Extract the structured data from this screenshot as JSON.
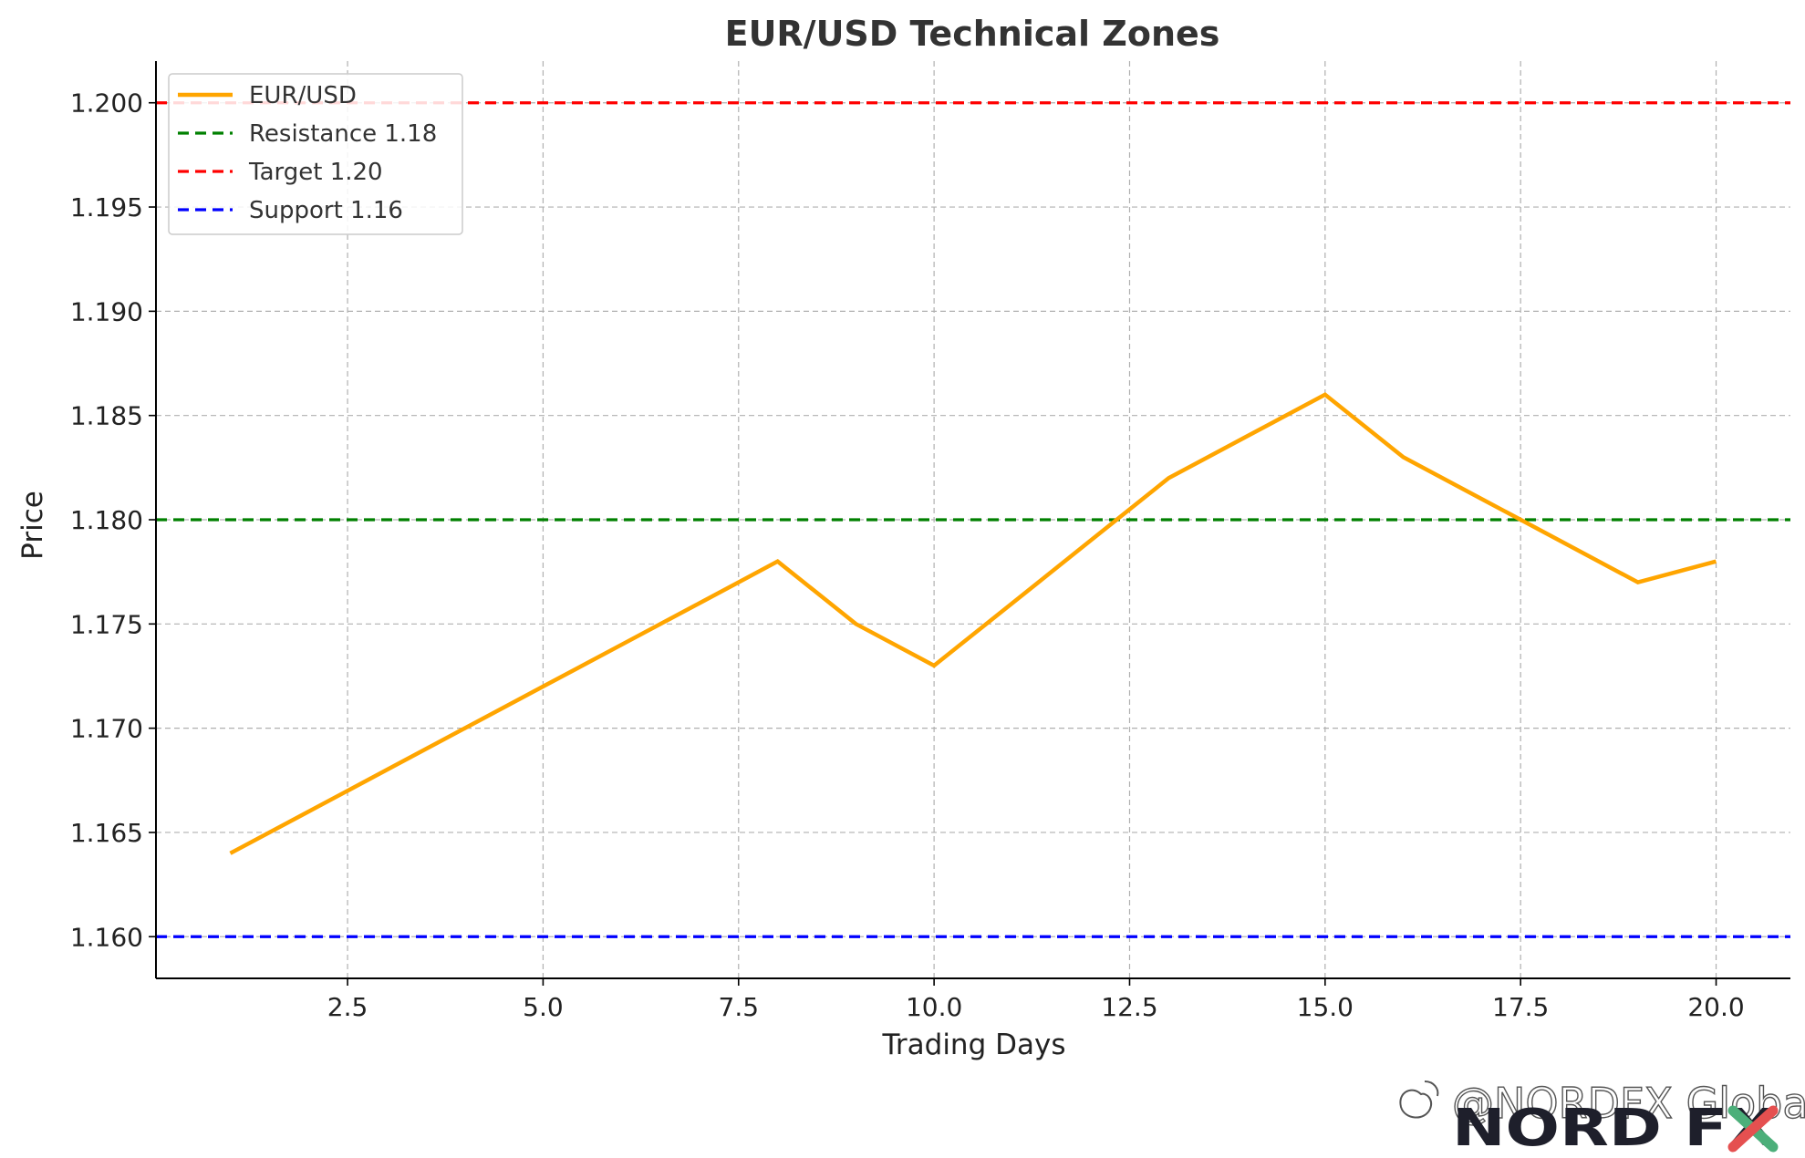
{
  "chart_data": {
    "type": "line",
    "title": "EUR/USD Technical Zones",
    "xlabel": "Trading Days",
    "ylabel": "Price",
    "xlim": [
      0.05,
      20.95
    ],
    "ylim": [
      1.158,
      1.202
    ],
    "x_ticks": [
      2.5,
      5.0,
      7.5,
      10.0,
      12.5,
      15.0,
      17.5,
      20.0
    ],
    "x_tick_labels": [
      "2.5",
      "5.0",
      "7.5",
      "10.0",
      "12.5",
      "15.0",
      "17.5",
      "20.0"
    ],
    "y_ticks": [
      1.16,
      1.165,
      1.17,
      1.175,
      1.18,
      1.185,
      1.19,
      1.195,
      1.2
    ],
    "y_tick_labels": [
      "1.160",
      "1.165",
      "1.170",
      "1.175",
      "1.180",
      "1.185",
      "1.190",
      "1.195",
      "1.200"
    ],
    "grid": true,
    "legend_position": "top-left",
    "x": [
      1,
      2,
      3,
      4,
      5,
      6,
      7,
      8,
      9,
      10,
      11,
      12,
      13,
      14,
      15,
      16,
      17,
      18,
      19,
      20
    ],
    "series": [
      {
        "name": "EUR/USD",
        "color": "#ffa500",
        "style": "solid",
        "values": [
          1.164,
          1.166,
          1.168,
          1.17,
          1.172,
          1.174,
          1.176,
          1.178,
          1.175,
          1.173,
          1.176,
          1.179,
          1.182,
          1.184,
          1.186,
          1.183,
          1.181,
          1.179,
          1.177,
          1.178
        ]
      }
    ],
    "hlines": [
      {
        "name": "Resistance 1.18",
        "value": 1.18,
        "color": "#008000",
        "style": "dashed"
      },
      {
        "name": "Target 1.20",
        "value": 1.2,
        "color": "#ff0000",
        "style": "dashed"
      },
      {
        "name": "Support 1.16",
        "value": 1.16,
        "color": "#0000ff",
        "style": "dashed"
      }
    ]
  },
  "watermark": {
    "handle": "@NORDFX Global",
    "brand": "NORD FX"
  },
  "colors": {
    "grid": "#b0b0b0",
    "axis": "#000000",
    "legend_border": "#cccccc"
  }
}
